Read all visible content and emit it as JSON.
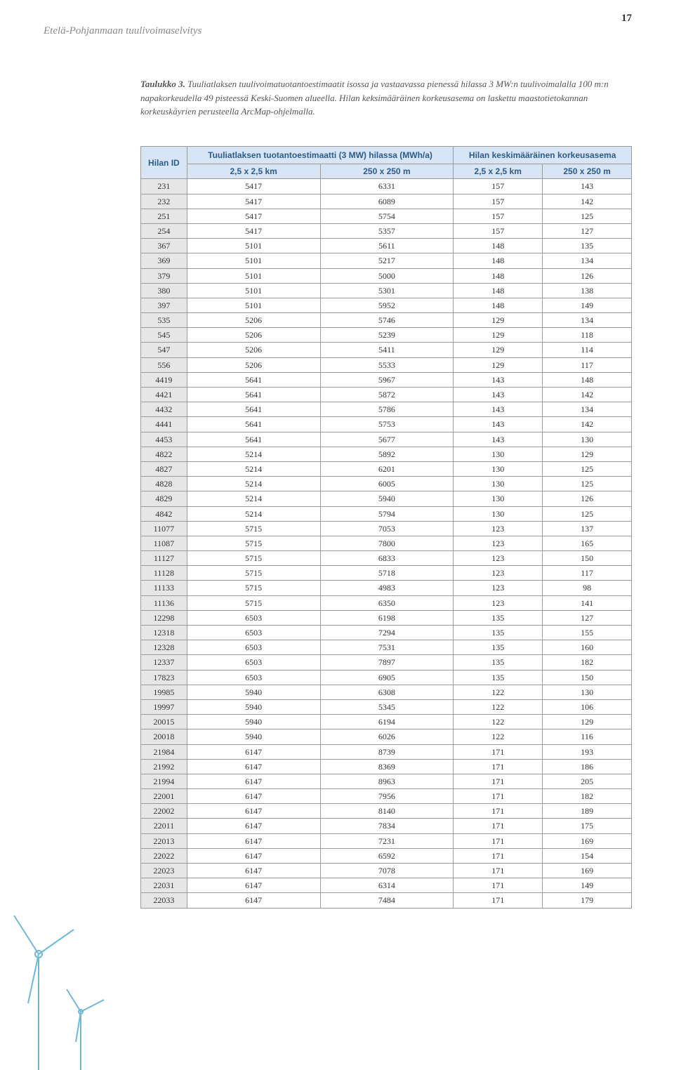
{
  "page": {
    "header": "Etelä-Pohjanmaan tuulivoimaselvitys",
    "number": "17"
  },
  "caption": {
    "bold": "Taulukko 3.",
    "text": " Tuuliatlaksen tuulivoimatuotantoestimaatit isossa ja vastaavassa pienessä hilassa 3 MW:n tuulivoimalalla 100 m:n napakorkeudella 49 pisteessä Keski-Suomen alueella. Hilan keksimääräinen korkeusasema on laskettu maastotietokannan korkeuskäyrien perusteella ArcMap-ohjelmalla."
  },
  "table": {
    "colors": {
      "header_bg": "#d7e5f5",
      "header_fg": "#2c5b8e",
      "id_bg": "#e6e6e6",
      "border": "#9a9a9a"
    },
    "headers": {
      "hilan_id": "Hilan ID",
      "group1": "Tuuliatlaksen tuotantoestimaatti (3 MW) hilassa (MWh/a)",
      "group2": "Hilan keskimääräinen korkeusasema",
      "c1": "2,5 x 2,5 km",
      "c2": "250 x 250 m",
      "c3": "2,5 x 2,5 km",
      "c4": "250 x 250 m"
    },
    "rows": [
      [
        "231",
        "5417",
        "6331",
        "157",
        "143"
      ],
      [
        "232",
        "5417",
        "6089",
        "157",
        "142"
      ],
      [
        "251",
        "5417",
        "5754",
        "157",
        "125"
      ],
      [
        "254",
        "5417",
        "5357",
        "157",
        "127"
      ],
      [
        "367",
        "5101",
        "5611",
        "148",
        "135"
      ],
      [
        "369",
        "5101",
        "5217",
        "148",
        "134"
      ],
      [
        "379",
        "5101",
        "5000",
        "148",
        "126"
      ],
      [
        "380",
        "5101",
        "5301",
        "148",
        "138"
      ],
      [
        "397",
        "5101",
        "5952",
        "148",
        "149"
      ],
      [
        "535",
        "5206",
        "5746",
        "129",
        "134"
      ],
      [
        "545",
        "5206",
        "5239",
        "129",
        "118"
      ],
      [
        "547",
        "5206",
        "5411",
        "129",
        "114"
      ],
      [
        "556",
        "5206",
        "5533",
        "129",
        "117"
      ],
      [
        "4419",
        "5641",
        "5967",
        "143",
        "148"
      ],
      [
        "4421",
        "5641",
        "5872",
        "143",
        "142"
      ],
      [
        "4432",
        "5641",
        "5786",
        "143",
        "134"
      ],
      [
        "4441",
        "5641",
        "5753",
        "143",
        "142"
      ],
      [
        "4453",
        "5641",
        "5677",
        "143",
        "130"
      ],
      [
        "4822",
        "5214",
        "5892",
        "130",
        "129"
      ],
      [
        "4827",
        "5214",
        "6201",
        "130",
        "125"
      ],
      [
        "4828",
        "5214",
        "6005",
        "130",
        "125"
      ],
      [
        "4829",
        "5214",
        "5940",
        "130",
        "126"
      ],
      [
        "4842",
        "5214",
        "5794",
        "130",
        "125"
      ],
      [
        "11077",
        "5715",
        "7053",
        "123",
        "137"
      ],
      [
        "11087",
        "5715",
        "7800",
        "123",
        "165"
      ],
      [
        "11127",
        "5715",
        "6833",
        "123",
        "150"
      ],
      [
        "11128",
        "5715",
        "5718",
        "123",
        "117"
      ],
      [
        "11133",
        "5715",
        "4983",
        "123",
        "98"
      ],
      [
        "11136",
        "5715",
        "6350",
        "123",
        "141"
      ],
      [
        "12298",
        "6503",
        "6198",
        "135",
        "127"
      ],
      [
        "12318",
        "6503",
        "7294",
        "135",
        "155"
      ],
      [
        "12328",
        "6503",
        "7531",
        "135",
        "160"
      ],
      [
        "12337",
        "6503",
        "7897",
        "135",
        "182"
      ],
      [
        "17823",
        "6503",
        "6905",
        "135",
        "150"
      ],
      [
        "19985",
        "5940",
        "6308",
        "122",
        "130"
      ],
      [
        "19997",
        "5940",
        "5345",
        "122",
        "106"
      ],
      [
        "20015",
        "5940",
        "6194",
        "122",
        "129"
      ],
      [
        "20018",
        "5940",
        "6026",
        "122",
        "116"
      ],
      [
        "21984",
        "6147",
        "8739",
        "171",
        "193"
      ],
      [
        "21992",
        "6147",
        "8369",
        "171",
        "186"
      ],
      [
        "21994",
        "6147",
        "8963",
        "171",
        "205"
      ],
      [
        "22001",
        "6147",
        "7956",
        "171",
        "182"
      ],
      [
        "22002",
        "6147",
        "8140",
        "171",
        "189"
      ],
      [
        "22011",
        "6147",
        "7834",
        "171",
        "175"
      ],
      [
        "22013",
        "6147",
        "7231",
        "171",
        "169"
      ],
      [
        "22022",
        "6147",
        "6592",
        "171",
        "154"
      ],
      [
        "22023",
        "6147",
        "7078",
        "171",
        "169"
      ],
      [
        "22031",
        "6147",
        "6314",
        "171",
        "149"
      ],
      [
        "22033",
        "6147",
        "7484",
        "171",
        "179"
      ]
    ]
  },
  "turbine": {
    "stroke": "#6fb8d8",
    "stroke_width": 2
  }
}
